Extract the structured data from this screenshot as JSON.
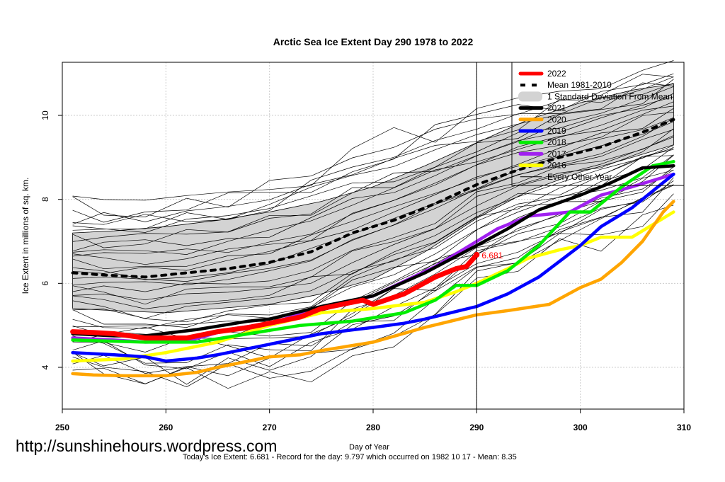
{
  "chart_data": {
    "type": "line",
    "title": "Arctic Sea Ice Extent Day 290 1978 to 2022",
    "xlabel": "Day of Year",
    "ylabel": "Ice Extent in millions of sq. km.",
    "xlim": [
      250,
      310
    ],
    "ylim": [
      3.0,
      11.3
    ],
    "xticks": [
      250,
      260,
      270,
      280,
      290,
      300,
      310
    ],
    "yticks": [
      4,
      6,
      8,
      10
    ],
    "grid": true,
    "legend_position": "top-right",
    "vline_day": 290,
    "annotation": {
      "text": "6.681",
      "x": 290,
      "y": 6.681,
      "color": "#ff0000"
    },
    "sd_band": {
      "name": "1 Standard Deviation From Mean",
      "color": "#d3d3d3",
      "x": [
        251,
        255,
        260,
        265,
        270,
        275,
        280,
        285,
        290,
        295,
        300,
        305,
        309
      ],
      "upper": [
        7.2,
        7.25,
        7.35,
        7.5,
        7.7,
        7.95,
        8.3,
        8.8,
        9.35,
        9.9,
        10.3,
        10.6,
        10.75
      ],
      "lower": [
        5.4,
        5.35,
        5.3,
        5.4,
        5.5,
        5.75,
        6.1,
        6.75,
        7.55,
        8.2,
        8.65,
        9.0,
        9.3
      ]
    },
    "mean": {
      "name": "Mean 1981-2010",
      "color": "#000000",
      "x": [
        251,
        254,
        258,
        262,
        266,
        270,
        274,
        278,
        282,
        286,
        290,
        294,
        298,
        302,
        306,
        309
      ],
      "values": [
        6.25,
        6.2,
        6.15,
        6.25,
        6.35,
        6.5,
        6.75,
        7.2,
        7.5,
        7.9,
        8.35,
        8.7,
        9.0,
        9.25,
        9.6,
        9.9
      ]
    },
    "series": [
      {
        "name": "2022",
        "color": "#ff0000",
        "x": [
          251,
          253,
          255,
          258,
          262,
          265,
          268,
          270,
          273,
          275,
          277,
          279,
          280,
          283,
          286,
          288,
          289,
          290
        ],
        "values": [
          4.85,
          4.83,
          4.8,
          4.7,
          4.7,
          4.85,
          4.95,
          5.05,
          5.2,
          5.4,
          5.5,
          5.6,
          5.5,
          5.75,
          6.15,
          6.35,
          6.4,
          6.681
        ]
      },
      {
        "name": "2021",
        "color": "#000000",
        "x": [
          251,
          255,
          258,
          263,
          268,
          270,
          275,
          280,
          285,
          290,
          293,
          296,
          300,
          303,
          306,
          309
        ],
        "values": [
          4.8,
          4.75,
          4.75,
          4.9,
          5.1,
          5.15,
          5.45,
          5.7,
          6.25,
          6.9,
          7.3,
          7.75,
          8.1,
          8.4,
          8.75,
          8.8
        ]
      },
      {
        "name": "2020",
        "color": "#ffa500",
        "x": [
          251,
          253,
          256,
          260,
          263,
          265,
          270,
          273,
          275,
          280,
          285,
          290,
          293,
          297,
          300,
          302,
          304,
          306,
          308,
          309
        ],
        "values": [
          3.85,
          3.82,
          3.8,
          3.8,
          3.88,
          4.0,
          4.25,
          4.3,
          4.4,
          4.6,
          4.95,
          5.25,
          5.35,
          5.5,
          5.9,
          6.1,
          6.5,
          7.0,
          7.7,
          7.95
        ]
      },
      {
        "name": "2019",
        "color": "#0000ff",
        "x": [
          251,
          255,
          258,
          260,
          263,
          265,
          270,
          275,
          280,
          283,
          285,
          290,
          293,
          296,
          300,
          302,
          305,
          307,
          309
        ],
        "values": [
          4.35,
          4.3,
          4.25,
          4.15,
          4.22,
          4.3,
          4.55,
          4.8,
          4.95,
          5.05,
          5.15,
          5.45,
          5.75,
          6.15,
          6.9,
          7.35,
          7.8,
          8.2,
          8.6
        ]
      },
      {
        "name": "2018",
        "color": "#00ee00",
        "x": [
          251,
          258,
          263,
          268,
          273,
          278,
          283,
          286,
          288,
          290,
          293,
          296,
          299,
          301,
          304,
          307,
          309
        ],
        "values": [
          4.65,
          4.6,
          4.6,
          4.8,
          5.0,
          5.1,
          5.3,
          5.6,
          5.95,
          5.95,
          6.3,
          6.9,
          7.7,
          7.7,
          8.3,
          8.8,
          8.9
        ]
      },
      {
        "name": "2017",
        "color": "#a020f0",
        "x": [
          251,
          255,
          258,
          262,
          266,
          270,
          275,
          280,
          283,
          286,
          290,
          292,
          295,
          299,
          302,
          305,
          309
        ],
        "values": [
          4.7,
          4.65,
          4.6,
          4.62,
          4.9,
          5.05,
          5.4,
          5.7,
          6.05,
          6.4,
          7.0,
          7.3,
          7.6,
          7.7,
          8.1,
          8.3,
          8.6
        ]
      },
      {
        "name": "2016",
        "color": "#ffff00",
        "x": [
          251,
          256,
          260,
          265,
          270,
          275,
          280,
          285,
          288,
          290,
          293,
          295,
          298,
          300,
          302,
          305,
          307,
          309
        ],
        "values": [
          4.15,
          4.2,
          4.35,
          4.6,
          5.0,
          5.3,
          5.4,
          5.55,
          5.8,
          6.0,
          6.35,
          6.6,
          6.8,
          6.9,
          7.1,
          7.1,
          7.4,
          7.7
        ]
      }
    ],
    "other_years": {
      "name": "Every Other Year",
      "color": "#000000",
      "count_shown": 38
    },
    "legend": [
      {
        "label": "2022",
        "style": "thick-line",
        "color": "#ff0000"
      },
      {
        "label": "Mean 1981-2010",
        "style": "dashed",
        "color": "#000000"
      },
      {
        "label": "1 Standard Deviation From Mean",
        "style": "band",
        "color": "#d3d3d3"
      },
      {
        "label": "2021",
        "style": "thick-line",
        "color": "#000000"
      },
      {
        "label": "2020",
        "style": "thick-line",
        "color": "#ffa500"
      },
      {
        "label": "2019",
        "style": "thick-line",
        "color": "#0000ff"
      },
      {
        "label": "2018",
        "style": "thick-line",
        "color": "#00ee00"
      },
      {
        "label": "2017",
        "style": "thick-line",
        "color": "#a020f0"
      },
      {
        "label": "2016",
        "style": "thick-line",
        "color": "#ffff00"
      },
      {
        "label": "Every Other Year",
        "style": "thin-line",
        "color": "#000000"
      }
    ]
  },
  "watermark": "http://sunshinehours.wordpress.com",
  "footer": "Today's Ice Extent: 6.681  - Record for the day: 9.797 which occurred on 1982 10 17  - Mean: 8.35"
}
